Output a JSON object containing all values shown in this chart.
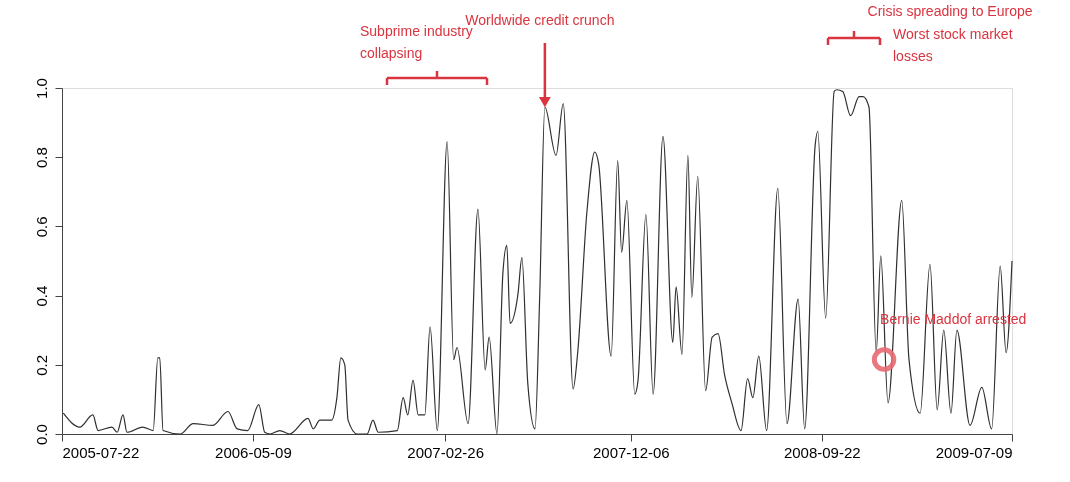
{
  "chart_data": {
    "type": "line",
    "line_style": "solid",
    "marker": "none",
    "grid": false,
    "xlim": [
      "2005-07-22",
      "2009-07-09"
    ],
    "xticks": [
      "2005-07-22",
      "2006-05-09",
      "2007-02-26",
      "2007-12-06",
      "2008-09-22",
      "2009-07-09"
    ],
    "ylim": [
      0,
      1
    ],
    "yticks": [
      {
        "value": 0,
        "label": "0.0"
      },
      {
        "value": 0.2,
        "label": "0.2"
      },
      {
        "value": 0.4,
        "label": "0.4"
      },
      {
        "value": 0.6,
        "label": "0.6"
      },
      {
        "value": 0.8,
        "label": "0.8"
      },
      {
        "value": 1,
        "label": "1.0"
      }
    ],
    "x": [
      "2005-07-24",
      "2005-08-18",
      "2005-09-07",
      "2005-09-15",
      "2005-10-06",
      "2005-10-14",
      "2005-10-23",
      "2005-10-29",
      "2005-11-22",
      "2005-12-08",
      "2005-12-15",
      "2005-12-18",
      "2005-12-23",
      "2006-01-18",
      "2006-02-07",
      "2006-03-09",
      "2006-04-01",
      "2006-04-15",
      "2006-05-01",
      "2006-05-18",
      "2006-05-27",
      "2006-06-04",
      "2006-06-19",
      "2006-07-04",
      "2006-08-01",
      "2006-08-09",
      "2006-08-19",
      "2006-09-06",
      "2006-09-14",
      "2006-09-20",
      "2006-09-26",
      "2006-10-01",
      "2006-10-15",
      "2006-10-30",
      "2006-11-08",
      "2006-11-16",
      "2006-12-15",
      "2006-12-24",
      "2006-12-31",
      "2007-01-08",
      "2007-01-16",
      "2007-01-26",
      "2007-02-03",
      "2007-02-14",
      "2007-03-01",
      "2007-03-11",
      "2007-03-16",
      "2007-04-02",
      "2007-04-17",
      "2007-04-28",
      "2007-05-04",
      "2007-05-16",
      "2007-05-25",
      "2007-05-31",
      "2007-06-05",
      "2007-06-17",
      "2007-06-23",
      "2007-07-02",
      "2007-07-13",
      "2007-07-20",
      "2007-07-28",
      "2007-08-14",
      "2007-08-25",
      "2007-09-09",
      "2007-09-16",
      "2007-09-30",
      "2007-10-12",
      "2007-10-18",
      "2007-11-06",
      "2007-11-16",
      "2007-11-22",
      "2007-11-30",
      "2007-12-12",
      "2007-12-17",
      "2007-12-29",
      "2008-01-09",
      "2008-01-24",
      "2008-02-08",
      "2008-02-13",
      "2008-02-22",
      "2008-03-02",
      "2008-03-08",
      "2008-03-17",
      "2008-03-29",
      "2008-04-08",
      "2008-04-17",
      "2008-04-27",
      "2008-05-08",
      "2008-05-22",
      "2008-06-01",
      "2008-06-09",
      "2008-06-18",
      "2008-06-30",
      "2008-07-17",
      "2008-07-31",
      "2008-08-17",
      "2008-08-27",
      "2008-09-12",
      "2008-09-16",
      "2008-09-28",
      "2008-10-11",
      "2008-10-15",
      "2008-10-24",
      "2008-11-05",
      "2008-11-18",
      "2008-11-24",
      "2008-12-03",
      "2008-12-14",
      "2008-12-21",
      "2009-01-01",
      "2009-01-22",
      "2009-02-02",
      "2009-02-19",
      "2009-03-06",
      "2009-03-17",
      "2009-03-27",
      "2009-04-07",
      "2009-04-16",
      "2009-05-06",
      "2009-05-24",
      "2009-06-08",
      "2009-06-21",
      "2009-06-30",
      "2009-07-09"
    ],
    "series": [
      {
        "color": "#303030",
        "values": [
          0.06,
          0.02,
          0.055,
          0.01,
          0.02,
          0.005,
          0.055,
          0.005,
          0.02,
          0.01,
          0.22,
          0.22,
          0.01,
          0.0,
          0.03,
          0.025,
          0.065,
          0.015,
          0.01,
          0.085,
          0.005,
          0.0,
          0.01,
          0.0,
          0.045,
          0.015,
          0.04,
          0.04,
          0.105,
          0.22,
          0.2,
          0.04,
          0.0,
          0.0,
          0.04,
          0.005,
          0.01,
          0.105,
          0.055,
          0.155,
          0.055,
          0.055,
          0.31,
          0.01,
          0.845,
          0.215,
          0.25,
          0.03,
          0.65,
          0.185,
          0.28,
          0.0,
          0.465,
          0.545,
          0.32,
          0.405,
          0.51,
          0.145,
          0.015,
          0.39,
          0.945,
          0.805,
          0.955,
          0.13,
          0.235,
          0.64,
          0.815,
          0.78,
          0.225,
          0.79,
          0.525,
          0.675,
          0.115,
          0.155,
          0.635,
          0.115,
          0.86,
          0.265,
          0.425,
          0.23,
          0.805,
          0.395,
          0.745,
          0.125,
          0.28,
          0.29,
          0.17,
          0.09,
          0.01,
          0.16,
          0.105,
          0.225,
          0.01,
          0.71,
          0.03,
          0.39,
          0.015,
          0.835,
          0.875,
          0.335,
          0.99,
          0.995,
          0.99,
          0.92,
          0.975,
          0.975,
          0.945,
          0.235,
          0.515,
          0.09,
          0.675,
          0.215,
          0.06,
          0.49,
          0.07,
          0.3,
          0.06,
          0.3,
          0.025,
          0.135,
          0.015,
          0.485,
          0.235,
          0.5
        ]
      }
    ],
    "annotations": [
      "Subprime industry collapsing",
      {
        "text": "Worldwide credit crunch",
        "x": "2007-07-28",
        "y": 0.945
      },
      "Crisis spreading to Europe",
      "Worst stock market losses",
      {
        "text": "Bernie Maddof arrested",
        "x": "2008-12-26",
        "y": 0.215
      }
    ]
  }
}
